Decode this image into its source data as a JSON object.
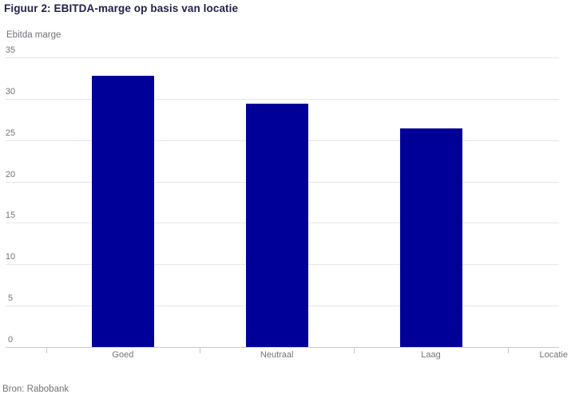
{
  "chart_data": {
    "type": "bar",
    "title": "Figuur 2: EBITDA-marge op basis van locatie",
    "ylabel": "Ebitda marge",
    "xlabel": "Locatie",
    "categories": [
      "Goed",
      "Neutraal",
      "Laag"
    ],
    "values": [
      32.8,
      29.4,
      26.4
    ],
    "ylim": [
      0,
      35
    ],
    "ytick_step": 5,
    "yticks": [
      0,
      5,
      10,
      15,
      20,
      25,
      30,
      35
    ],
    "grid": true,
    "legend": false,
    "bar_color": "#000099"
  },
  "source": "Bron: Rabobank",
  "colors": {
    "title_text": "#23224e",
    "axis_text": "#717477",
    "gridline": "#e6e6e6",
    "axis_line": "#c9c9c9"
  }
}
